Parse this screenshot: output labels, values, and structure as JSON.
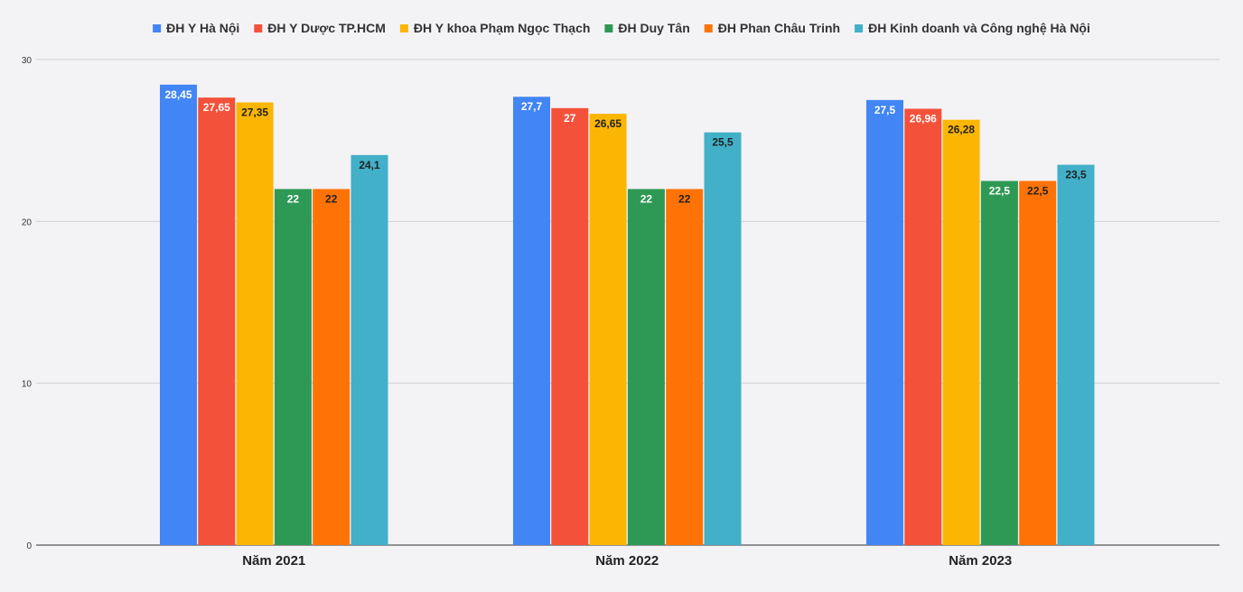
{
  "chart_data": {
    "type": "bar",
    "categories": [
      "Năm 2021",
      "Năm 2022",
      "Năm 2023"
    ],
    "series": [
      {
        "name": "ĐH Y Hà Nội",
        "color": "#4285f4",
        "label_color": "#ffffff",
        "values": [
          28.45,
          27.7,
          27.5
        ],
        "labels": [
          "28,45",
          "27,7",
          "27,5"
        ]
      },
      {
        "name": "ĐH Y Dược TP.HCM",
        "color": "#f4513a",
        "label_color": "#ffffff",
        "values": [
          27.65,
          27,
          26.96
        ],
        "labels": [
          "27,65",
          "27",
          "26,96"
        ]
      },
      {
        "name": "ĐH Y khoa Phạm Ngọc Thạch",
        "color": "#fbb603",
        "label_color": "#222222",
        "values": [
          27.35,
          26.65,
          26.28
        ],
        "labels": [
          "27,35",
          "26,65",
          "26,28"
        ]
      },
      {
        "name": "ĐH Duy Tân",
        "color": "#2e9954",
        "label_color": "#ffffff",
        "values": [
          22,
          22,
          22.5
        ],
        "labels": [
          "22",
          "22",
          "22,5"
        ]
      },
      {
        "name": "ĐH Phan Châu Trinh",
        "color": "#ff7306",
        "label_color": "#222222",
        "values": [
          22,
          22,
          22.5
        ],
        "labels": [
          "22",
          "22",
          "22,5"
        ]
      },
      {
        "name": "ĐH Kinh doanh và Công nghệ Hà Nội",
        "color": "#41b0c8",
        "label_color": "#222222",
        "values": [
          24.1,
          25.5,
          23.5
        ],
        "labels": [
          "24,1",
          "25,5",
          "23,5"
        ]
      }
    ],
    "y_ticks": [
      "0",
      "10",
      "20",
      "30"
    ],
    "ylim": [
      0,
      30
    ],
    "grid": true,
    "legend_position": "top-center"
  }
}
